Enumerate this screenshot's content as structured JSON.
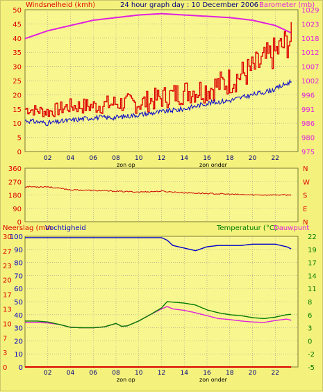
{
  "title": "24 hour graph day : 10 December 2006",
  "colors": {
    "background": "#f4f27c",
    "plot_bg": "#f8f68e",
    "wind": "#dd0000",
    "barometer": "#e020e0",
    "temperature": "#007a00",
    "dewpoint": "#e020e0",
    "humidity": "#0000cc",
    "rain": "#dd0000",
    "direction": "#cc0000",
    "grid": "#9a9a9a"
  },
  "x_ticks": [
    "02",
    "04",
    "06",
    "08",
    "10",
    "12",
    "14",
    "16",
    "18",
    "20",
    "22"
  ],
  "sun_labels": {
    "rise": "zon op",
    "set": "zon onder"
  },
  "chart_data": [
    {
      "id": "wind-barometer",
      "type": "line",
      "left_label": "Windsnelheid (kmh)",
      "right_label": "Barometer (mb)",
      "ylim_left": [
        0,
        50
      ],
      "ylim_right": [
        975,
        1029
      ],
      "left_ticks": [
        "0",
        "5",
        "10",
        "15",
        "20",
        "25",
        "30",
        "35",
        "40",
        "45",
        "50"
      ],
      "right_ticks": [
        "975",
        "980",
        "986",
        "991",
        "996",
        "1002",
        "1007",
        "1012",
        "1018",
        "1023",
        "1029"
      ],
      "x": [
        0,
        2,
        4,
        6,
        8,
        10,
        12,
        14,
        16,
        18,
        20,
        22,
        23.5
      ],
      "series": [
        {
          "name": "Windsnelheid",
          "axis": "left",
          "values": [
            15,
            14,
            16,
            16,
            17,
            17,
            19,
            21,
            22,
            25,
            29,
            35,
            40
          ]
        },
        {
          "name": "Windsnelheid",
          "axis": "left",
          "values": [
            11,
            10,
            11,
            12,
            12,
            13,
            14,
            15,
            17,
            18,
            20,
            22,
            25
          ]
        },
        {
          "name": "Barometer",
          "axis": "right",
          "values": [
            1018,
            1021,
            1023,
            1025,
            1026,
            1027,
            1027.5,
            1027,
            1026.5,
            1026,
            1025,
            1023,
            1020
          ]
        }
      ]
    },
    {
      "id": "wind-direction",
      "type": "line",
      "left_ticks": [
        "0",
        "90",
        "180",
        "270",
        "360"
      ],
      "right_ticks": [
        "N",
        "E",
        "S",
        "W",
        "N"
      ],
      "ylim": [
        0,
        360
      ],
      "x": [
        0,
        2,
        4,
        6,
        8,
        10,
        12,
        14,
        16,
        18,
        20,
        22,
        23.5
      ],
      "series": [
        {
          "name": "Windrichting",
          "values": [
            235,
            235,
            215,
            210,
            205,
            200,
            205,
            195,
            190,
            185,
            180,
            180,
            180
          ]
        }
      ]
    },
    {
      "id": "rain-humidity-temp",
      "type": "line",
      "left_label_1": "Neerslag (mm",
      "left_label_2": "Vochtigheid",
      "right_label_1": "Temperatuur (°C)",
      "right_label_2": "Dauwpunt",
      "left_ticks_rain": [
        "0",
        "3",
        "7",
        "10",
        "13",
        "17",
        "20",
        "23",
        "27",
        "30"
      ],
      "left_ticks_humidity": [
        "0",
        "10",
        "20",
        "30",
        "40",
        "50",
        "60",
        "70",
        "80",
        "90",
        "100"
      ],
      "right_ticks": [
        "-5",
        "-2",
        "0",
        "3",
        "6",
        "8",
        "11",
        "14",
        "17",
        "19",
        "22"
      ],
      "ylim_humidity": [
        0,
        100
      ],
      "ylim_temperature": [
        -5,
        22
      ],
      "x": [
        0,
        1,
        2,
        3,
        4,
        5,
        6,
        7,
        8,
        8.5,
        9,
        10,
        11,
        12,
        12.5,
        13,
        14,
        15,
        16,
        17,
        18,
        19,
        20,
        21,
        22,
        23,
        23.5
      ],
      "series": [
        {
          "name": "Temperatuur",
          "values": [
            4.5,
            4.5,
            4.3,
            3.8,
            3.2,
            3.1,
            3.1,
            3.3,
            4.0,
            3.4,
            3.5,
            4.5,
            5.8,
            7.2,
            8.5,
            8.4,
            8.2,
            7.8,
            6.8,
            6.2,
            5.8,
            5.6,
            5.2,
            5.0,
            5.3,
            5.8,
            5.9
          ]
        },
        {
          "name": "Dauwpunt",
          "values": [
            4.2,
            4.2,
            4.1,
            3.8,
            3.2,
            3.1,
            3.1,
            3.3,
            4.0,
            3.4,
            3.5,
            4.5,
            5.8,
            7.0,
            7.5,
            7.0,
            6.7,
            6.2,
            5.6,
            5.0,
            4.8,
            4.5,
            4.3,
            4.2,
            4.6,
            4.9,
            4.6
          ]
        },
        {
          "name": "Vochtigheid",
          "values": [
            99,
            99,
            99,
            99,
            99,
            99,
            99,
            99,
            99,
            99,
            99,
            99,
            99,
            99,
            97,
            93,
            91,
            89,
            92,
            93,
            93,
            93,
            94,
            94,
            94,
            92,
            90
          ]
        },
        {
          "name": "Neerslag",
          "values": [
            0,
            0,
            0,
            0,
            0,
            0,
            0,
            0,
            0,
            0,
            0,
            0,
            0,
            0,
            0,
            0,
            0,
            0,
            0,
            0,
            0,
            0,
            0,
            0,
            0,
            0,
            0
          ]
        }
      ]
    }
  ]
}
